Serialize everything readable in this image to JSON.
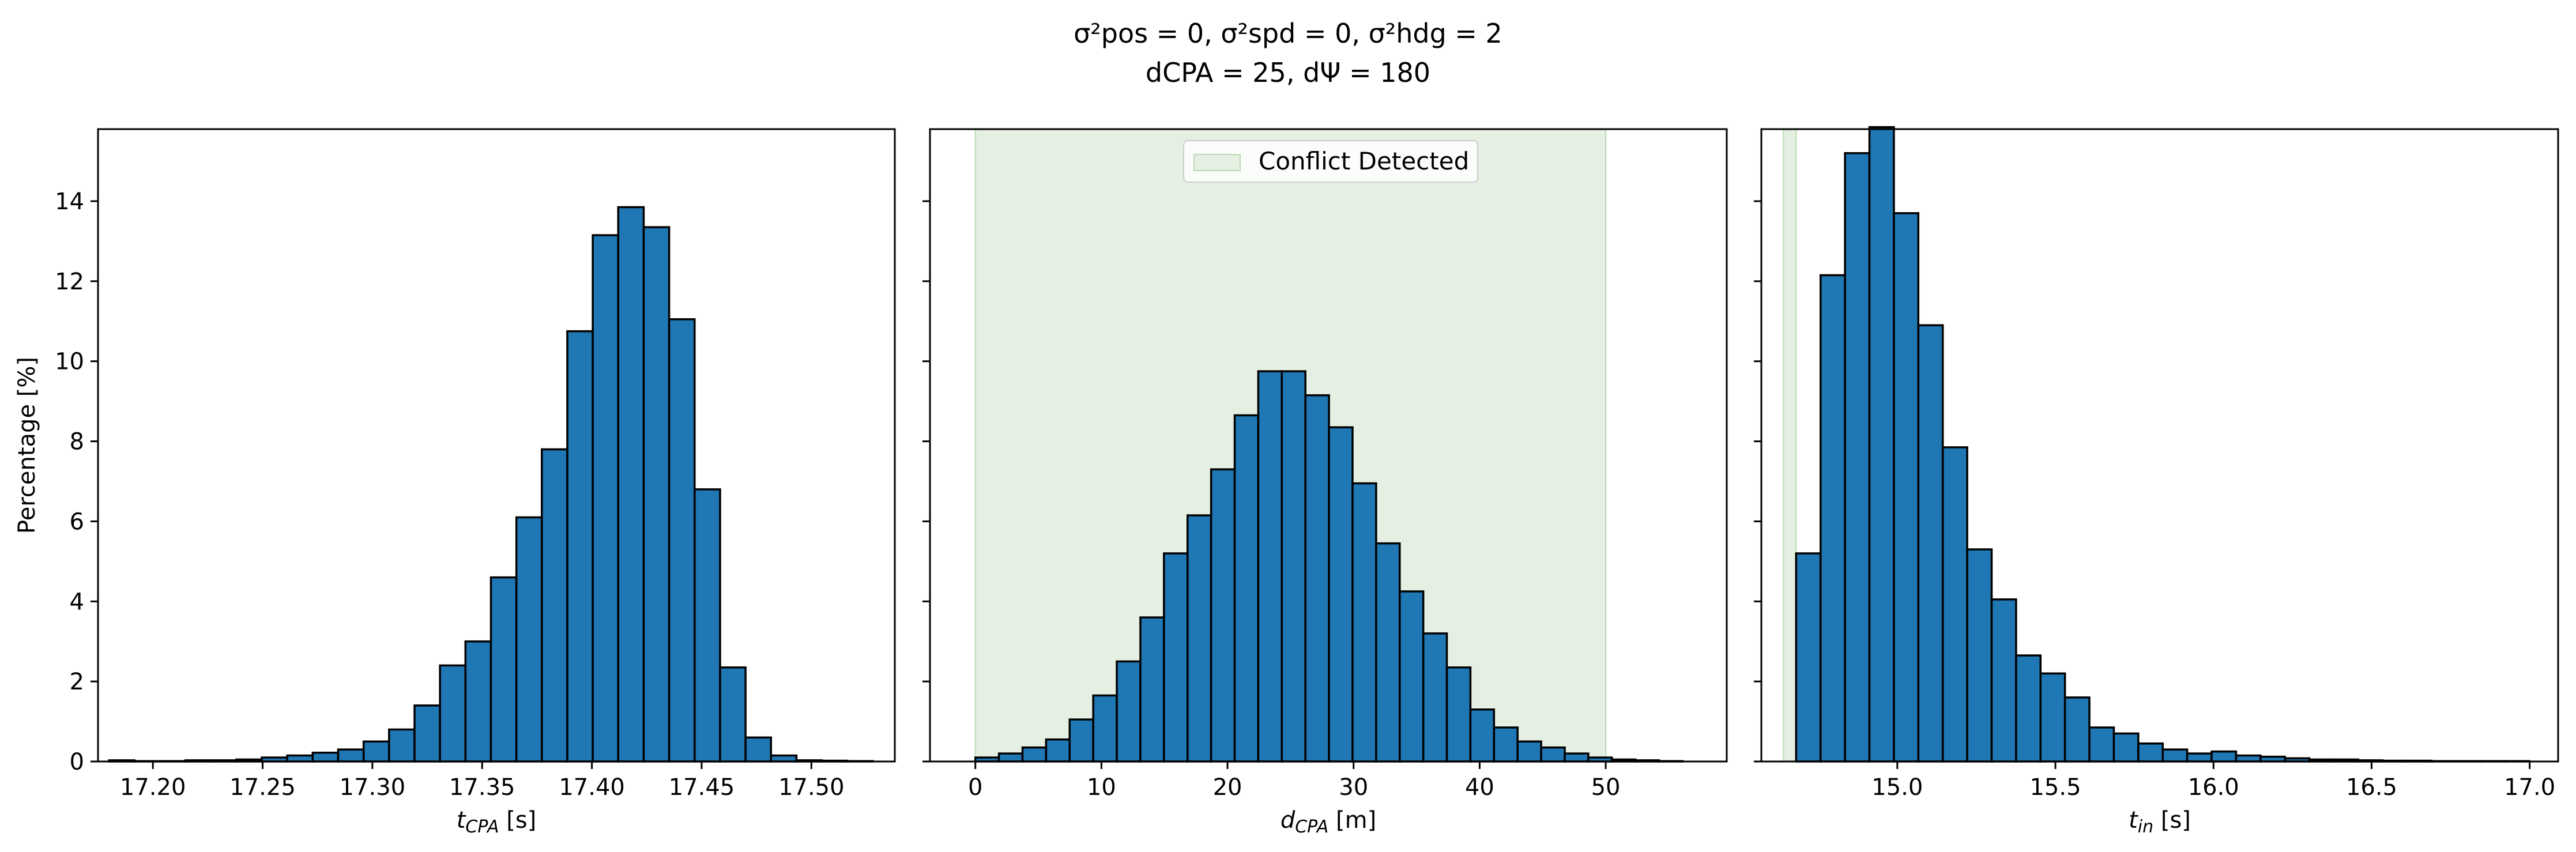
{
  "title": {
    "line1": "σ²pos = 0, σ²spd = 0, σ²hdg = 2",
    "line2": "dCPA = 25, dΨ = 180"
  },
  "colors": {
    "bar_fill": "#1f77b4",
    "bar_edge": "#000000",
    "conflict_shade": "#e5f0e3",
    "conflict_edge": "#b9dbb4"
  },
  "chart_data": [
    {
      "type": "bar",
      "xlabel": "tCPA [s]",
      "ylabel": "Percentage [%]",
      "xlim": [
        17.175,
        17.538
      ],
      "ylim": [
        0,
        15.8
      ],
      "xticks": [
        17.2,
        17.25,
        17.3,
        17.35,
        17.4,
        17.45,
        17.5
      ],
      "xtick_labels": [
        "17.20",
        "17.25",
        "17.30",
        "17.35",
        "17.40",
        "17.45",
        "17.50"
      ],
      "yticks": [
        0,
        2,
        4,
        6,
        8,
        10,
        12,
        14
      ],
      "ytick_labels": [
        "0",
        "2",
        "4",
        "6",
        "8",
        "10",
        "12",
        "14"
      ],
      "bin_start": 17.18,
      "bin_width": 0.0116,
      "values": [
        0.03,
        0.01,
        0.01,
        0.03,
        0.03,
        0.05,
        0.1,
        0.15,
        0.22,
        0.3,
        0.5,
        0.8,
        1.4,
        2.4,
        3.0,
        4.6,
        6.1,
        7.8,
        10.75,
        13.15,
        13.85,
        13.35,
        11.05,
        6.8,
        2.35,
        0.6,
        0.15,
        0.03,
        0.02,
        0.01
      ]
    },
    {
      "type": "bar",
      "xlabel": "dCPA [m]",
      "xlim": [
        -3.6,
        59.6
      ],
      "ylim": [
        0,
        15.8
      ],
      "xticks": [
        0,
        10,
        20,
        30,
        40,
        50
      ],
      "xtick_labels": [
        "0",
        "10",
        "20",
        "30",
        "40",
        "50"
      ],
      "yticks": [
        0,
        2,
        4,
        6,
        8,
        10,
        12,
        14
      ],
      "bin_start": 0,
      "bin_width": 1.87,
      "values": [
        0.1,
        0.2,
        0.35,
        0.55,
        1.05,
        1.65,
        2.5,
        3.6,
        5.2,
        6.15,
        7.3,
        8.65,
        9.75,
        9.75,
        9.15,
        8.35,
        6.95,
        5.45,
        4.25,
        3.2,
        2.35,
        1.3,
        0.85,
        0.5,
        0.35,
        0.2,
        0.1,
        0.05,
        0.03,
        0.01
      ],
      "conflict_region": [
        0,
        50
      ],
      "legend": {
        "label": "Conflict Detected",
        "position": "upper center"
      }
    },
    {
      "type": "bar",
      "xlabel": "tin [s]",
      "xlim": [
        14.57,
        17.09
      ],
      "ylim": [
        0,
        15.8
      ],
      "xticks": [
        15.0,
        15.5,
        16.0,
        16.5,
        17.0
      ],
      "xtick_labels": [
        "15.0",
        "15.5",
        "16.0",
        "16.5",
        "17.0"
      ],
      "yticks": [
        0,
        2,
        4,
        6,
        8,
        10,
        12,
        14
      ],
      "bin_start": 14.68,
      "bin_width": 0.0773,
      "values": [
        5.2,
        12.15,
        15.2,
        15.85,
        13.7,
        10.9,
        7.85,
        5.3,
        4.05,
        2.65,
        2.2,
        1.6,
        0.85,
        0.7,
        0.45,
        0.3,
        0.2,
        0.25,
        0.15,
        0.12,
        0.08,
        0.05,
        0.05,
        0.03,
        0.02,
        0.02,
        0.01,
        0.01,
        0.01,
        0.01
      ],
      "conflict_region": [
        14.68,
        14.68
      ]
    }
  ]
}
